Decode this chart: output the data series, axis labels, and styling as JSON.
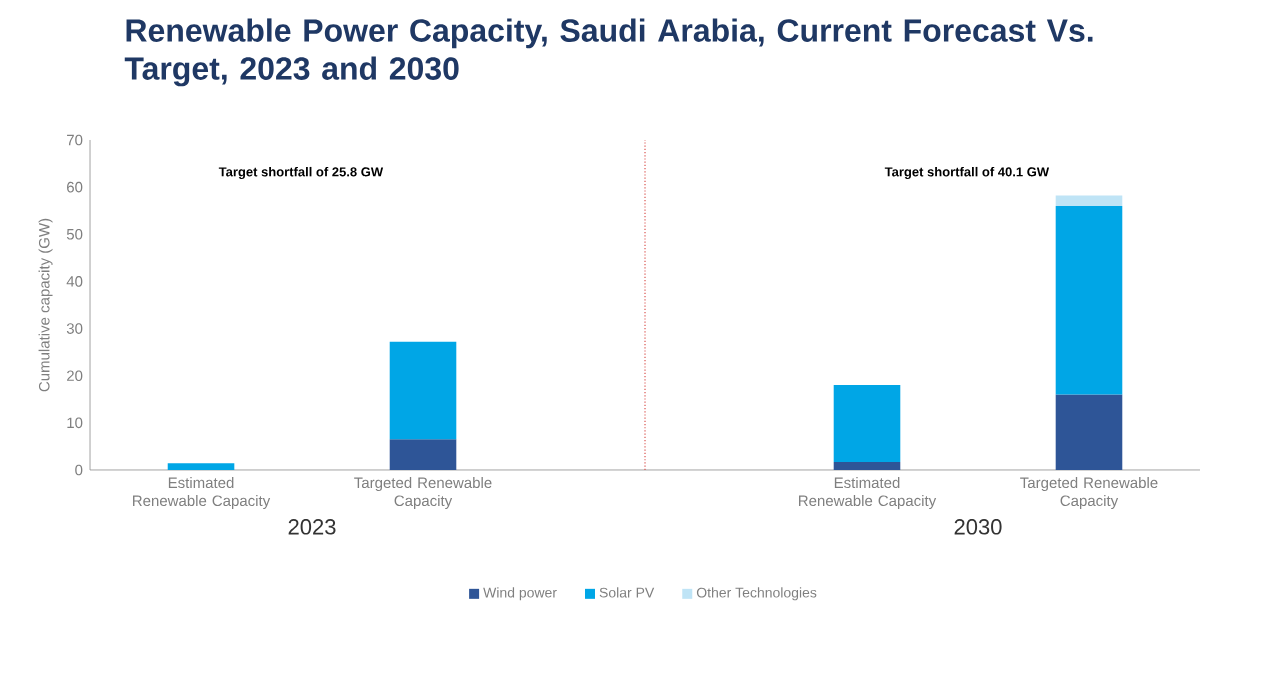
{
  "chart_data": [
    {
      "type": "bar",
      "stacked": true,
      "title": "Renewable Power Capacity, Saudi Arabia, Current Forecast Vs. Target, 2023 and 2030",
      "ylabel": "Cumulative capacity (GW)",
      "categories": [
        "Estimated Renewable Capacity",
        "Targeted Renewable Capacity"
      ],
      "series": [
        {
          "name": "Wind power",
          "color": "#2e5597",
          "values": [
            null,
            6.5
          ]
        },
        {
          "name": "Solar PV",
          "color": "#00a6e6",
          "values": [
            1.4,
            20.7
          ]
        },
        {
          "name": "Other Technologies",
          "color": "#bfe4f6",
          "values": [
            null,
            null
          ]
        }
      ],
      "ylim": [
        0,
        70
      ],
      "yticks": [
        0,
        10,
        20,
        30,
        40,
        50,
        60,
        70
      ],
      "annotations": [
        "Target shortfall of 25.8 GW",
        "2023"
      ],
      "legend": "bottom",
      "grid": false
    },
    {
      "type": "bar",
      "stacked": true,
      "categories": [
        "Estimated Renewable Capacity",
        "Targeted Renewable Capacity"
      ],
      "series": [
        {
          "color": "#2e5597",
          "values": [
            1.7,
            16
          ]
        },
        {
          "color": "#00a6e6",
          "values": [
            16.3,
            40
          ]
        },
        {
          "color": "#bfe4f6",
          "values": [
            null,
            2.2
          ]
        }
      ],
      "ylim": [
        0,
        70
      ],
      "tick_labels": "x",
      "annotations": [
        "Target shortfall of 40.1 GW",
        "2030"
      ],
      "grid": false
    }
  ]
}
